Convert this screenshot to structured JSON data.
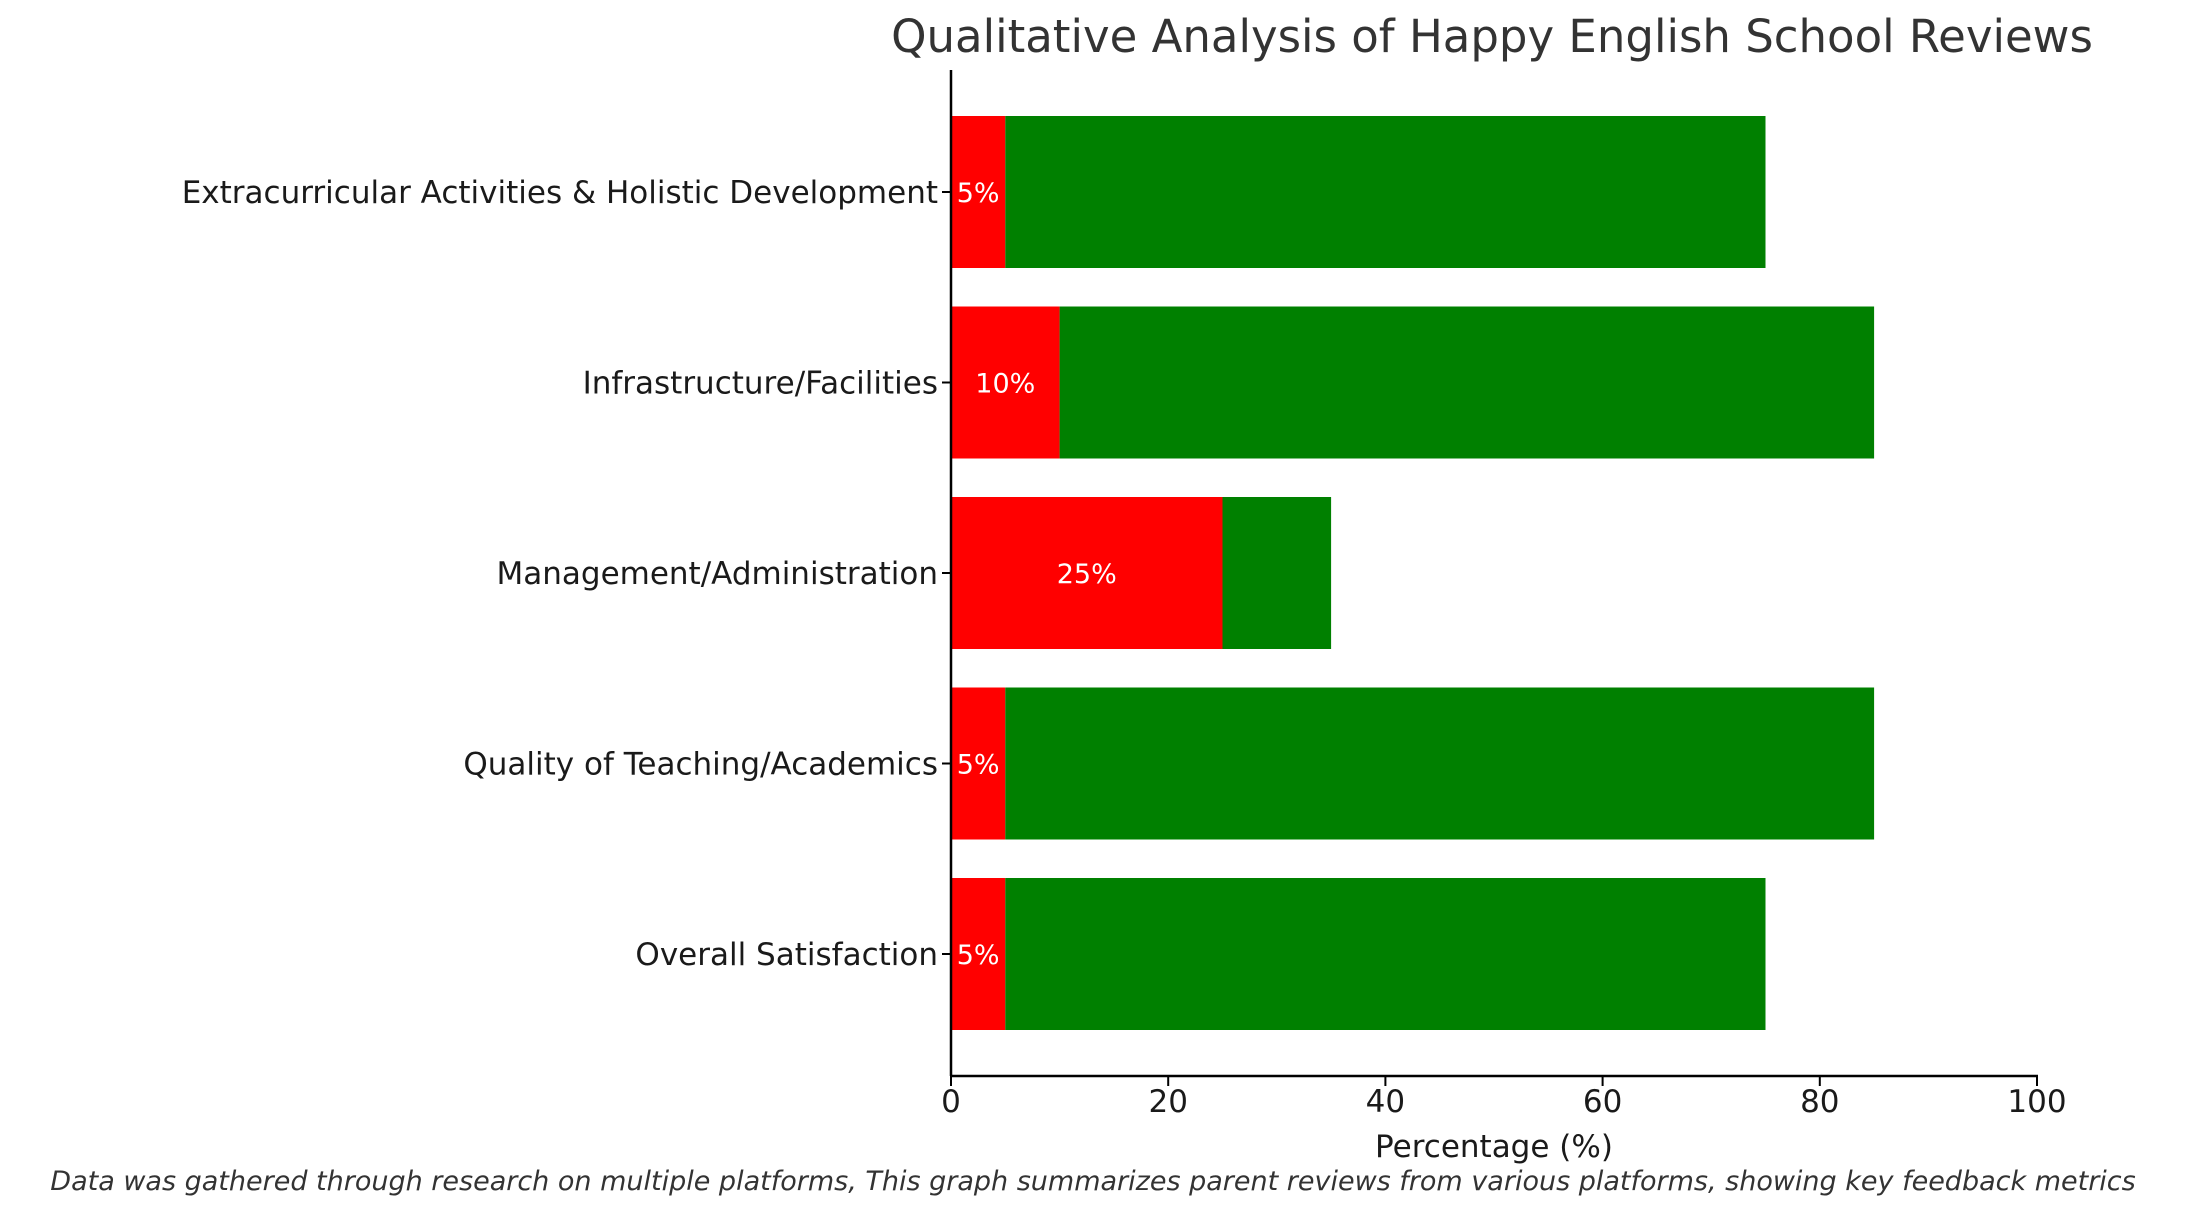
{
  "chart_data": {
    "type": "bar",
    "orientation": "horizontal",
    "stacked": true,
    "title": "Qualitative Analysis of Happy English School Reviews",
    "xlabel": "Percentage (%)",
    "ylabel": "",
    "xlim": [
      0,
      100
    ],
    "xticks": [
      0,
      20,
      40,
      60,
      80,
      100
    ],
    "categories": [
      "Overall Satisfaction",
      "Quality of Teaching/Academics",
      "Management/Administration",
      "Infrastructure/Facilities",
      "Extracurricular Activities & Holistic Development"
    ],
    "series": [
      {
        "color": "#ff0000",
        "values": [
          5,
          5,
          25,
          10,
          5
        ]
      },
      {
        "color": "#008000",
        "values": [
          70,
          80,
          10,
          75,
          70
        ]
      }
    ],
    "data_labels": [
      "5%",
      "5%",
      "25%",
      "10%",
      "5%"
    ],
    "caption": "Data was gathered through research on multiple platforms, This graph summarizes parent reviews from various platforms, showing key feedback metrics",
    "grid": false,
    "legend": "none"
  }
}
